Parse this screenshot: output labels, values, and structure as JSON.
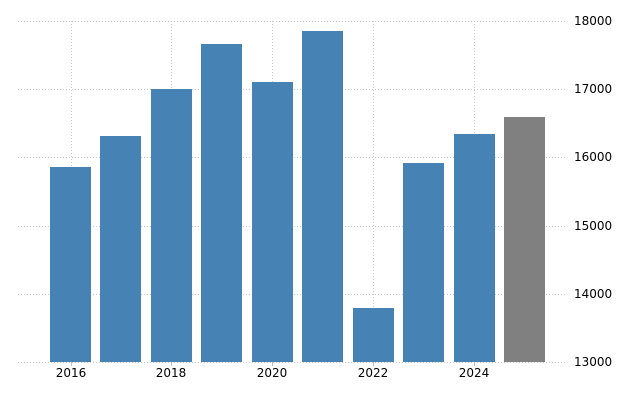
{
  "chart_data": {
    "type": "bar",
    "title": "",
    "xlabel": "",
    "ylabel": "",
    "categories": [
      "2016",
      "2017",
      "2018",
      "2019",
      "2020",
      "2021",
      "2022",
      "2023",
      "2024",
      "2025"
    ],
    "values": [
      15860,
      16310,
      17000,
      17660,
      17110,
      17850,
      13790,
      15920,
      16340,
      16590
    ],
    "bar_colors": [
      "#4682b4",
      "#4682b4",
      "#4682b4",
      "#4682b4",
      "#4682b4",
      "#4682b4",
      "#4682b4",
      "#4682b4",
      "#4682b4",
      "#808080"
    ],
    "ylim": [
      13000,
      18000
    ],
    "yticks": [
      18000,
      17000,
      16000,
      15000,
      14000,
      13000
    ],
    "ytick_labels": [
      "18000",
      "17000",
      "16000",
      "15000",
      "14000",
      "13000"
    ],
    "xtick_labels": [
      "2016",
      "2018",
      "2020",
      "2022",
      "2024"
    ],
    "xtick_category_indexes": [
      0,
      2,
      4,
      6,
      8
    ],
    "y_axis_side": "right",
    "legend": "none",
    "grid_style": "dotted",
    "colors": {
      "bar": "#4682b4",
      "forecast_bar": "#808080",
      "gridline": "#cccccc",
      "tick": "#c0c0c0",
      "label_text": "#000000",
      "background": "#ffffff"
    }
  }
}
